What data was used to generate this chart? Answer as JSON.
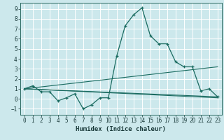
{
  "xlabel": "Humidex (Indice chaleur)",
  "bg_color": "#cce8ec",
  "line_color": "#1a6b60",
  "grid_color": "#ffffff",
  "xlim": [
    -0.5,
    23.5
  ],
  "ylim": [
    -1.6,
    9.6
  ],
  "xticks": [
    0,
    1,
    2,
    3,
    4,
    5,
    6,
    7,
    8,
    9,
    10,
    11,
    12,
    13,
    14,
    15,
    16,
    17,
    18,
    19,
    20,
    21,
    22,
    23
  ],
  "yticks": [
    -1,
    0,
    1,
    2,
    3,
    4,
    5,
    6,
    7,
    8,
    9
  ],
  "series_main": {
    "x": [
      0,
      1,
      2,
      3,
      4,
      5,
      6,
      7,
      8,
      9,
      10,
      11,
      12,
      13,
      14,
      15,
      16,
      17,
      18,
      19,
      20,
      21,
      22,
      23
    ],
    "y": [
      1.0,
      1.3,
      0.7,
      0.7,
      -0.2,
      0.1,
      0.5,
      -1.0,
      -0.6,
      0.1,
      0.1,
      4.3,
      7.3,
      8.4,
      9.1,
      6.3,
      5.5,
      5.5,
      3.7,
      3.2,
      3.2,
      0.8,
      1.0,
      0.2
    ]
  },
  "series_lines": [
    {
      "x": [
        0,
        23
      ],
      "y": [
        1.0,
        0.2
      ]
    },
    {
      "x": [
        0,
        23
      ],
      "y": [
        1.0,
        3.2
      ]
    },
    {
      "x": [
        0,
        23
      ],
      "y": [
        1.0,
        0.1
      ]
    }
  ],
  "tick_fontsize": 5.5,
  "xlabel_fontsize": 6.5
}
